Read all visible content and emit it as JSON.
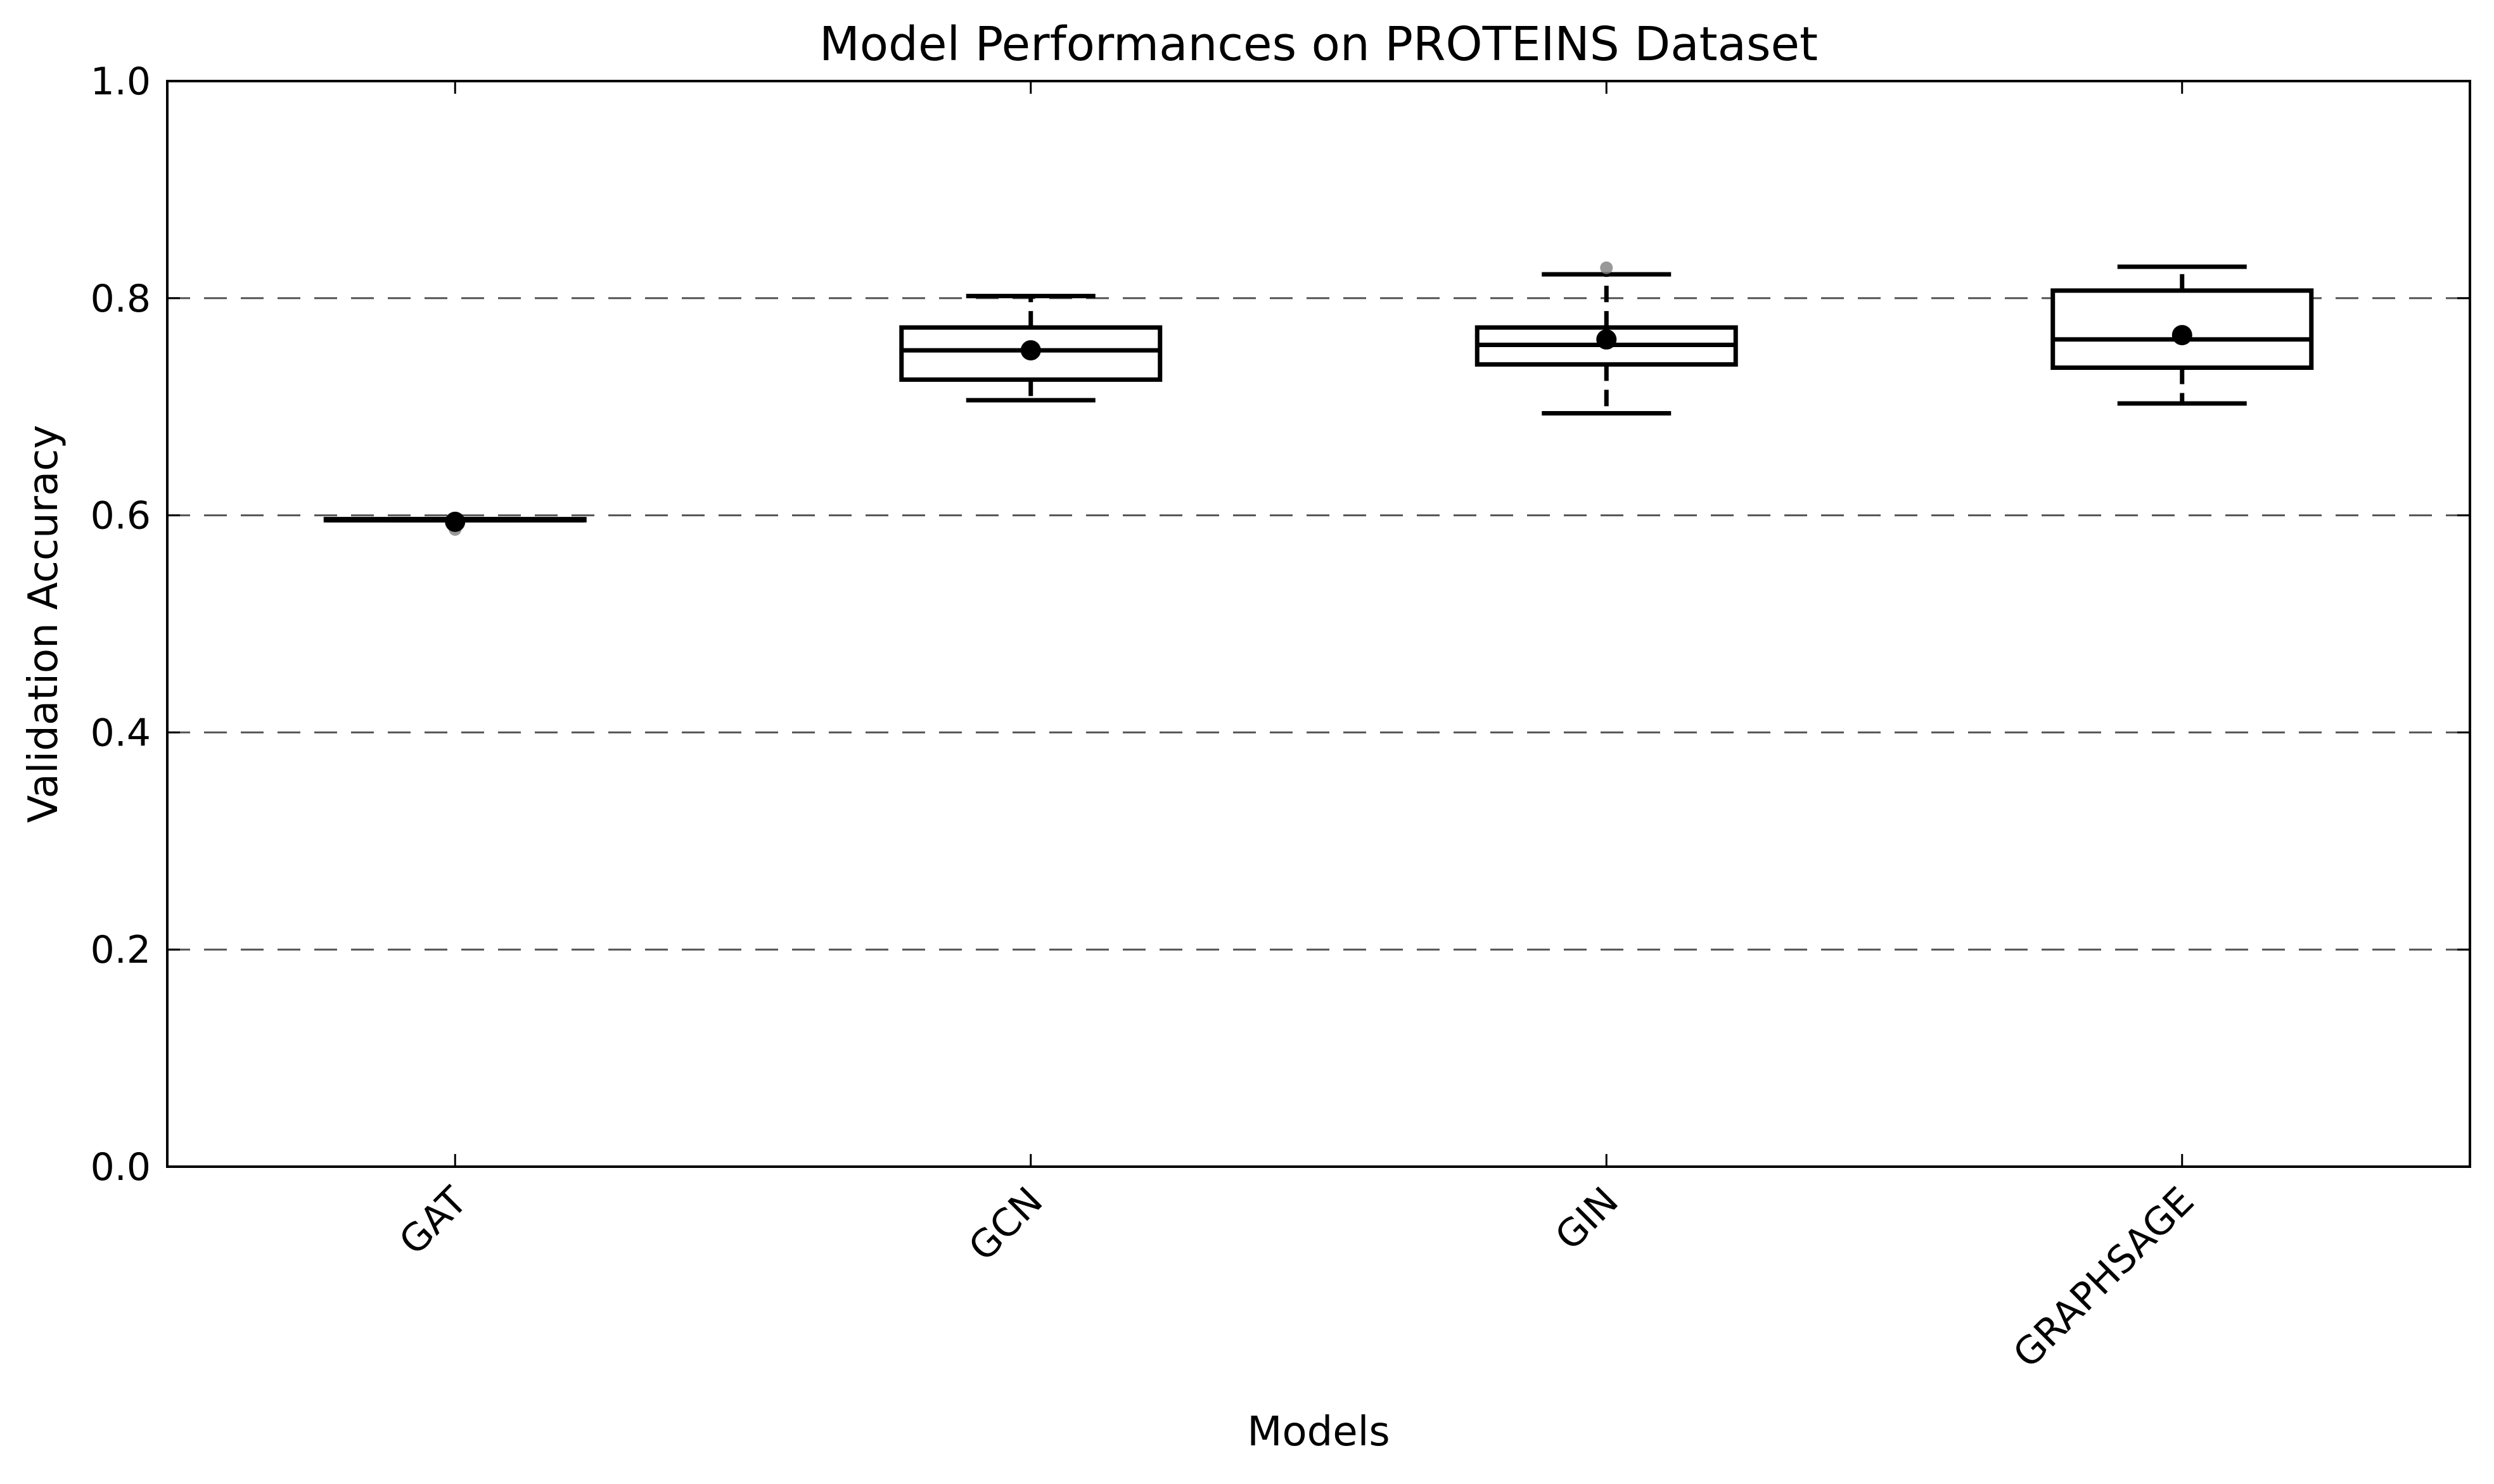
{
  "chart_data": {
    "type": "boxplot",
    "title": "Model Performances on PROTEINS Dataset",
    "xlabel": "Models",
    "ylabel": "Validation Accuracy",
    "ylim": [
      0.0,
      1.0
    ],
    "yticks": [
      "0.0",
      "0.2",
      "0.4",
      "0.6",
      "0.8",
      "1.0"
    ],
    "grid": "horizontal dashed",
    "categories": [
      "GAT",
      "GCN",
      "GIN",
      "GRAPHSAGE"
    ],
    "boxes": [
      {
        "name": "GAT",
        "whisker_low": 0.5955,
        "q1": 0.5955,
        "median": 0.5955,
        "q3": 0.5965,
        "whisker_high": 0.5965,
        "mean": 0.594,
        "outliers": [
          0.587
        ]
      },
      {
        "name": "GCN",
        "whisker_low": 0.706,
        "q1": 0.725,
        "median": 0.752,
        "q3": 0.773,
        "whisker_high": 0.802,
        "mean": 0.752,
        "outliers": []
      },
      {
        "name": "GIN",
        "whisker_low": 0.694,
        "q1": 0.739,
        "median": 0.757,
        "q3": 0.773,
        "whisker_high": 0.822,
        "mean": 0.762,
        "outliers": [
          0.828
        ]
      },
      {
        "name": "GRAPHSAGE",
        "whisker_low": 0.703,
        "q1": 0.736,
        "median": 0.762,
        "q3": 0.807,
        "whisker_high": 0.829,
        "mean": 0.766,
        "outliers": []
      }
    ],
    "colors": {
      "box": "#000000",
      "grid": "#555555",
      "outlier": "#808080",
      "mean": "#000000"
    }
  }
}
